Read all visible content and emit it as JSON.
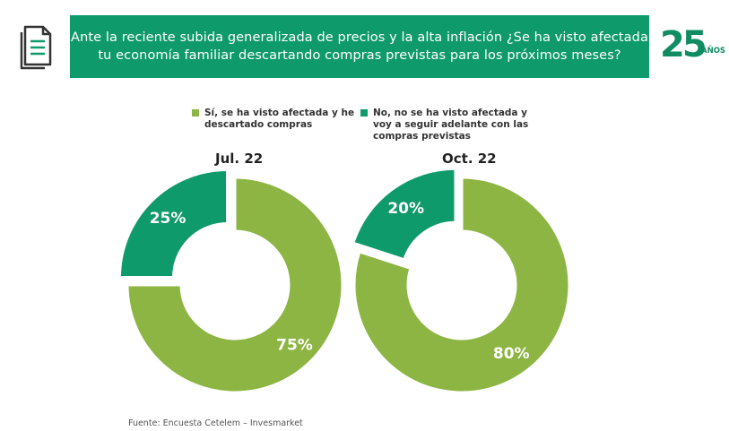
{
  "header": {
    "question": "Ante la reciente subida generalizada de precios y la alta inflación ¿Se ha visto afectada\ntu economía familiar descartando compras previstas para los próximos meses?"
  },
  "logo": {
    "number": "25",
    "label": "AÑOS"
  },
  "icons": {
    "document": "document-icon"
  },
  "colors": {
    "banner": "#0f9a6b",
    "yes": "#8db543",
    "no": "#0f9a6b"
  },
  "chart_data": {
    "type": "pie",
    "variant": "donut",
    "legend": [
      {
        "key": "yes",
        "label": "Sí, se ha visto afectada y he\ndescartado compras"
      },
      {
        "key": "no",
        "label": "No, no se ha visto afectada y\nvoy a seguir adelante con las\ncompras previstas"
      }
    ],
    "charts": [
      {
        "title": "Jul. 22",
        "slices": [
          {
            "key": "yes",
            "value": 75,
            "label": "75%"
          },
          {
            "key": "no",
            "value": 25,
            "label": "25%"
          }
        ]
      },
      {
        "title": "Oct. 22",
        "slices": [
          {
            "key": "yes",
            "value": 80,
            "label": "80%"
          },
          {
            "key": "no",
            "value": 20,
            "label": "20%"
          }
        ]
      }
    ]
  },
  "footer": {
    "source": "Fuente: Encuesta Cetelem – Invesmarket"
  }
}
